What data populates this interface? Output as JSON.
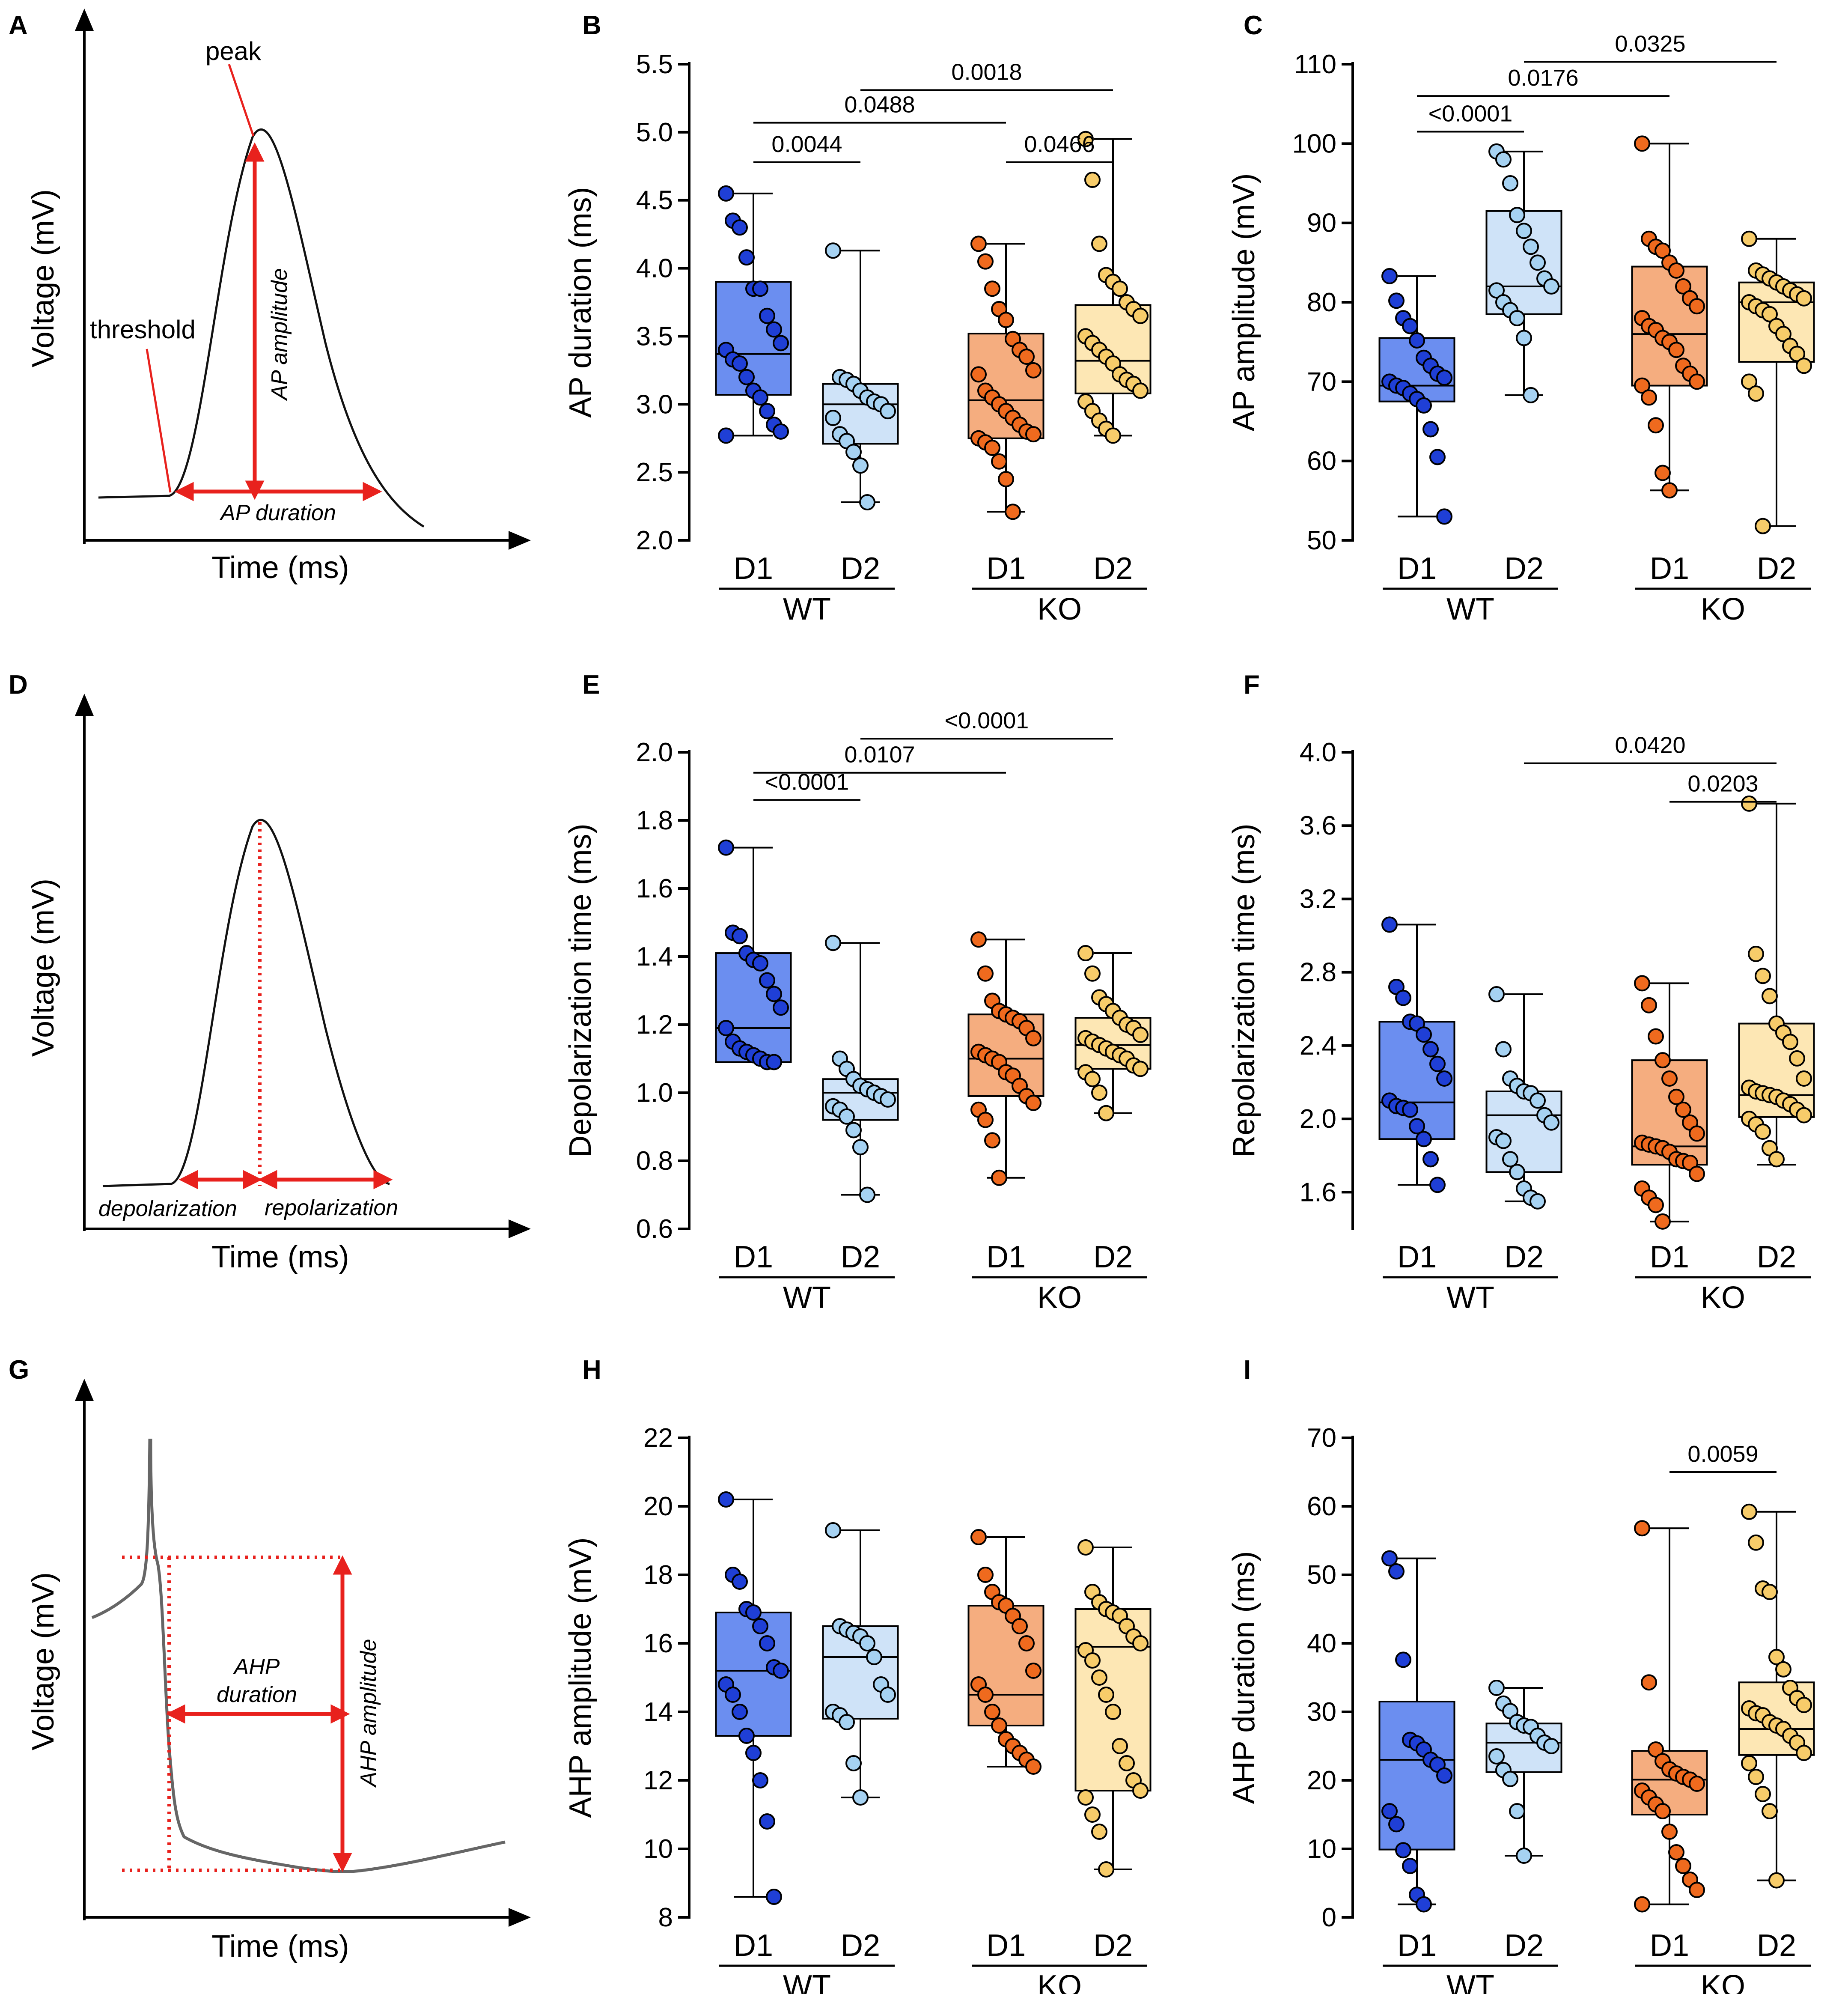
{
  "figure": {
    "panel_letters": [
      "A",
      "B",
      "C",
      "D",
      "E",
      "F",
      "G",
      "H",
      "I"
    ],
    "colors": {
      "WT_D1": "#6b8ef0",
      "WT_D2": "#cfe3f8",
      "KO_D1": "#f5ad7f",
      "KO_D2": "#fde7b4",
      "WT_D1_dot": "#1f3fd6",
      "WT_D2_dot": "#a6d2f2",
      "KO_D1_dot": "#ef6a1e",
      "KO_D2_dot": "#f7cc6a",
      "arrow": "#e8211d"
    },
    "schematics": [
      {
        "panel": "A",
        "ylabel": "Voltage (mV)",
        "xlabel": "Time (ms)",
        "labels": {
          "peak": "peak",
          "threshold": "threshold",
          "amplitude": "AP amplitude",
          "duration": "AP duration"
        }
      },
      {
        "panel": "D",
        "ylabel": "Voltage (mV)",
        "xlabel": "Time (ms)",
        "labels": {
          "depol": "depolarization",
          "repol": "repolarization"
        }
      },
      {
        "panel": "G",
        "ylabel": "Voltage (mV)",
        "xlabel": "Time (ms)",
        "labels": {
          "duration_1": "AHP",
          "duration_2": "duration",
          "amplitude": "AHP amplitude"
        }
      }
    ]
  },
  "chart_data": [
    {
      "panel": "B",
      "type": "box",
      "ylabel": "AP duration (ms)",
      "ylim": [
        2.0,
        5.5
      ],
      "ticks": [
        2.0,
        2.5,
        3.0,
        3.5,
        4.0,
        4.5,
        5.0,
        5.5
      ],
      "tick_labels": [
        "2.0",
        "2.5",
        "3.0",
        "3.5",
        "4.0",
        "4.5",
        "5.0",
        "5.5"
      ],
      "group_labels": [
        "WT",
        "KO"
      ],
      "category_labels": [
        "D1",
        "D2",
        "D1",
        "D2"
      ],
      "boxes": [
        {
          "name": "WT D1",
          "min": 2.77,
          "q1": 3.07,
          "median": 3.37,
          "q3": 3.9,
          "max": 4.55,
          "points": [
            4.55,
            4.35,
            4.3,
            4.08,
            3.85,
            3.85,
            3.65,
            3.55,
            3.45,
            3.4,
            3.33,
            3.3,
            3.2,
            3.1,
            3.05,
            2.95,
            2.85,
            2.8,
            2.77
          ]
        },
        {
          "name": "WT D2",
          "min": 2.28,
          "q1": 2.71,
          "median": 3.0,
          "q3": 3.15,
          "max": 4.13,
          "points": [
            4.13,
            3.2,
            3.18,
            3.15,
            3.1,
            3.05,
            3.02,
            3.0,
            2.95,
            2.9,
            2.78,
            2.73,
            2.65,
            2.55,
            2.28
          ]
        },
        {
          "name": "KO D1",
          "min": 2.21,
          "q1": 2.75,
          "median": 3.03,
          "q3": 3.52,
          "max": 4.18,
          "points": [
            4.18,
            4.05,
            3.85,
            3.7,
            3.62,
            3.48,
            3.4,
            3.35,
            3.25,
            3.22,
            3.1,
            3.05,
            3.0,
            2.95,
            2.9,
            2.85,
            2.8,
            2.78,
            2.75,
            2.72,
            2.68,
            2.58,
            2.45,
            2.21
          ]
        },
        {
          "name": "KO D2",
          "min": 2.77,
          "q1": 3.08,
          "median": 3.32,
          "q3": 3.73,
          "max": 4.95,
          "points": [
            4.95,
            4.65,
            4.18,
            3.95,
            3.9,
            3.85,
            3.75,
            3.7,
            3.65,
            3.5,
            3.45,
            3.4,
            3.35,
            3.3,
            3.22,
            3.18,
            3.15,
            3.1,
            3.02,
            2.95,
            2.88,
            2.82,
            2.77
          ]
        }
      ],
      "comparisons": [
        {
          "from": 0,
          "to": 1,
          "y": 4.78,
          "label": "0.0044"
        },
        {
          "from": 0,
          "to": 2,
          "y": 5.07,
          "label": "0.0488"
        },
        {
          "from": 1,
          "to": 3,
          "y": 5.31,
          "label": "0.0018"
        },
        {
          "from": 2,
          "to": 3,
          "y": 4.78,
          "label": "0.0466"
        }
      ]
    },
    {
      "panel": "C",
      "type": "box",
      "ylabel": "AP amplitude (mV)",
      "ylim": [
        50,
        110
      ],
      "ticks": [
        50,
        60,
        70,
        80,
        90,
        100,
        110
      ],
      "tick_labels": [
        "50",
        "60",
        "70",
        "80",
        "90",
        "100",
        "110"
      ],
      "group_labels": [
        "WT",
        "KO"
      ],
      "category_labels": [
        "D1",
        "D2",
        "D1",
        "D2"
      ],
      "boxes": [
        {
          "name": "WT D1",
          "min": 53.0,
          "q1": 67.5,
          "median": 69.5,
          "q3": 75.5,
          "max": 83.3,
          "points": [
            83.3,
            80.2,
            78.0,
            77.0,
            75.2,
            73.0,
            72.0,
            71.0,
            70.5,
            70.0,
            69.5,
            69.2,
            68.5,
            67.8,
            67.0,
            64.0,
            60.5,
            53.0
          ]
        },
        {
          "name": "WT D2",
          "min": 68.3,
          "q1": 78.5,
          "median": 82.0,
          "q3": 91.5,
          "max": 99.0,
          "points": [
            99.0,
            98.0,
            95.0,
            91.0,
            89.0,
            87.0,
            85.0,
            83.0,
            82.0,
            81.5,
            80.0,
            79.0,
            78.0,
            75.5,
            68.3
          ]
        },
        {
          "name": "KO D1",
          "min": 56.3,
          "q1": 69.5,
          "median": 76.0,
          "q3": 84.5,
          "max": 100.0,
          "points": [
            100.0,
            88.0,
            87.0,
            86.5,
            85.0,
            84.0,
            82.0,
            80.5,
            79.5,
            78.0,
            77.0,
            76.5,
            75.5,
            75.0,
            74.0,
            72.0,
            71.0,
            70.0,
            69.5,
            68.0,
            64.5,
            58.5,
            56.3
          ]
        },
        {
          "name": "KO D2",
          "min": 51.8,
          "q1": 72.5,
          "median": 80.0,
          "q3": 82.5,
          "max": 88.0,
          "points": [
            88.0,
            84.0,
            83.5,
            83.0,
            82.5,
            82.0,
            81.5,
            81.0,
            80.5,
            80.0,
            79.5,
            79.0,
            78.5,
            77.0,
            76.0,
            74.5,
            73.5,
            72.0,
            70.0,
            68.5,
            51.8
          ]
        }
      ],
      "comparisons": [
        {
          "from": 0,
          "to": 1,
          "y": 101.5,
          "label": "<0.0001"
        },
        {
          "from": 0,
          "to": 2,
          "y": 106,
          "label": "0.0176"
        },
        {
          "from": 1,
          "to": 3,
          "y": 110.3,
          "label": "0.0325"
        }
      ]
    },
    {
      "panel": "E",
      "type": "box",
      "ylabel": "Depolarization time (ms)",
      "ylim": [
        0.6,
        2.0
      ],
      "ticks": [
        0.6,
        0.8,
        1.0,
        1.2,
        1.4,
        1.6,
        1.8,
        2.0
      ],
      "tick_labels": [
        "0.6",
        "0.8",
        "1.0",
        "1.2",
        "1.4",
        "1.6",
        "1.8",
        "2.0"
      ],
      "group_labels": [
        "WT",
        "KO"
      ],
      "category_labels": [
        "D1",
        "D2",
        "D1",
        "D2"
      ],
      "boxes": [
        {
          "name": "WT D1",
          "min": 1.09,
          "q1": 1.09,
          "median": 1.19,
          "q3": 1.41,
          "max": 1.72,
          "points": [
            1.72,
            1.47,
            1.46,
            1.41,
            1.39,
            1.38,
            1.33,
            1.29,
            1.25,
            1.19,
            1.15,
            1.13,
            1.12,
            1.11,
            1.1,
            1.09,
            1.09
          ]
        },
        {
          "name": "WT D2",
          "min": 0.7,
          "q1": 0.92,
          "median": 1.0,
          "q3": 1.04,
          "max": 1.44,
          "points": [
            1.44,
            1.1,
            1.07,
            1.04,
            1.02,
            1.01,
            1.0,
            0.99,
            0.98,
            0.96,
            0.95,
            0.93,
            0.89,
            0.84,
            0.7
          ]
        },
        {
          "name": "KO D1",
          "min": 0.75,
          "q1": 0.99,
          "median": 1.1,
          "q3": 1.23,
          "max": 1.45,
          "points": [
            1.45,
            1.35,
            1.27,
            1.24,
            1.23,
            1.22,
            1.21,
            1.19,
            1.16,
            1.12,
            1.11,
            1.1,
            1.09,
            1.06,
            1.05,
            1.02,
            0.99,
            0.97,
            0.95,
            0.92,
            0.86,
            0.75
          ]
        },
        {
          "name": "KO D2",
          "min": 0.94,
          "q1": 1.07,
          "median": 1.14,
          "q3": 1.22,
          "max": 1.41,
          "points": [
            1.41,
            1.35,
            1.28,
            1.26,
            1.24,
            1.22,
            1.2,
            1.19,
            1.17,
            1.16,
            1.15,
            1.14,
            1.13,
            1.12,
            1.11,
            1.1,
            1.08,
            1.07,
            1.06,
            1.04,
            1.0,
            0.94
          ]
        }
      ],
      "comparisons": [
        {
          "from": 0,
          "to": 1,
          "y": 1.86,
          "label": "<0.0001"
        },
        {
          "from": 0,
          "to": 2,
          "y": 1.94,
          "label": "0.0107"
        },
        {
          "from": 1,
          "to": 3,
          "y": 2.04,
          "label": "<0.0001"
        }
      ]
    },
    {
      "panel": "F",
      "type": "box",
      "ylabel": "Repolarization time (ms)",
      "ylim": [
        1.4,
        4.0
      ],
      "ticks": [
        1.6,
        2.0,
        2.4,
        2.8,
        3.2,
        3.6,
        4.0
      ],
      "tick_labels": [
        "1.6",
        "2.0",
        "2.4",
        "2.8",
        "3.2",
        "3.6",
        "4.0"
      ],
      "group_labels": [
        "WT",
        "KO"
      ],
      "category_labels": [
        "D1",
        "D2",
        "D1",
        "D2"
      ],
      "boxes": [
        {
          "name": "WT D1",
          "min": 1.64,
          "q1": 1.89,
          "median": 2.09,
          "q3": 2.53,
          "max": 3.06,
          "points": [
            3.06,
            2.72,
            2.66,
            2.53,
            2.52,
            2.46,
            2.38,
            2.3,
            2.22,
            2.1,
            2.07,
            2.06,
            2.05,
            1.96,
            1.89,
            1.78,
            1.64
          ]
        },
        {
          "name": "WT D2",
          "min": 1.55,
          "q1": 1.71,
          "median": 2.02,
          "q3": 2.15,
          "max": 2.68,
          "points": [
            2.68,
            2.38,
            2.22,
            2.18,
            2.15,
            2.14,
            2.1,
            2.02,
            1.98,
            1.9,
            1.88,
            1.78,
            1.71,
            1.62,
            1.57,
            1.55
          ]
        },
        {
          "name": "KO D1",
          "min": 1.44,
          "q1": 1.75,
          "median": 1.85,
          "q3": 2.32,
          "max": 2.74,
          "points": [
            2.74,
            2.62,
            2.45,
            2.32,
            2.22,
            2.12,
            2.05,
            1.98,
            1.92,
            1.87,
            1.86,
            1.85,
            1.84,
            1.82,
            1.78,
            1.77,
            1.76,
            1.7,
            1.62,
            1.57,
            1.53,
            1.44
          ]
        },
        {
          "name": "KO D2",
          "min": 1.75,
          "q1": 2.01,
          "median": 2.13,
          "q3": 2.52,
          "max": 3.72,
          "points": [
            3.72,
            2.9,
            2.78,
            2.67,
            2.52,
            2.47,
            2.42,
            2.33,
            2.22,
            2.17,
            2.15,
            2.14,
            2.13,
            2.12,
            2.1,
            2.08,
            2.05,
            2.02,
            2.0,
            1.97,
            1.93,
            1.84,
            1.78
          ]
        }
      ],
      "comparisons": [
        {
          "from": 2,
          "to": 3,
          "y": 3.73,
          "label": "0.0203"
        },
        {
          "from": 1,
          "to": 3,
          "y": 3.94,
          "label": "0.0420"
        }
      ]
    },
    {
      "panel": "H",
      "type": "box",
      "ylabel": "AHP amplitude (mV)",
      "ylim": [
        8,
        22
      ],
      "ticks": [
        8,
        10,
        12,
        14,
        16,
        18,
        20,
        22
      ],
      "tick_labels": [
        "8",
        "10",
        "12",
        "14",
        "16",
        "18",
        "20",
        "22"
      ],
      "group_labels": [
        "WT",
        "KO"
      ],
      "category_labels": [
        "D1",
        "D2",
        "D1",
        "D2"
      ],
      "boxes": [
        {
          "name": "WT D1",
          "min": 8.6,
          "q1": 13.3,
          "median": 15.2,
          "q3": 16.9,
          "max": 20.2,
          "points": [
            20.2,
            18.0,
            17.8,
            17.0,
            16.9,
            16.5,
            16.0,
            15.3,
            15.2,
            14.8,
            14.5,
            14.0,
            13.3,
            12.8,
            12.0,
            10.8,
            8.6
          ]
        },
        {
          "name": "WT D2",
          "min": 11.5,
          "q1": 13.8,
          "median": 15.6,
          "q3": 16.5,
          "max": 19.3,
          "points": [
            19.3,
            16.5,
            16.4,
            16.3,
            16.2,
            16.0,
            15.6,
            14.8,
            14.5,
            14.0,
            13.9,
            13.7,
            12.5,
            11.5
          ]
        },
        {
          "name": "KO D1",
          "min": 12.4,
          "q1": 13.6,
          "median": 14.5,
          "q3": 17.1,
          "max": 19.1,
          "points": [
            19.1,
            18.0,
            17.5,
            17.2,
            17.1,
            16.8,
            16.5,
            16.0,
            15.2,
            14.8,
            14.5,
            14.0,
            13.6,
            13.2,
            13.0,
            12.8,
            12.6,
            12.4
          ]
        },
        {
          "name": "KO D2",
          "min": 9.4,
          "q1": 11.7,
          "median": 15.9,
          "q3": 17.0,
          "max": 18.8,
          "points": [
            18.8,
            17.5,
            17.2,
            17.0,
            16.9,
            16.8,
            16.5,
            16.2,
            16.0,
            15.8,
            15.5,
            15.0,
            14.5,
            14.0,
            13.0,
            12.5,
            12.0,
            11.7,
            11.5,
            11.0,
            10.5,
            9.4
          ]
        }
      ],
      "comparisons": []
    },
    {
      "panel": "I",
      "type": "box",
      "ylabel": "AHP duration (ms)",
      "ylim": [
        0,
        70
      ],
      "ticks": [
        0,
        10,
        20,
        30,
        40,
        50,
        60,
        70
      ],
      "tick_labels": [
        "0",
        "10",
        "20",
        "30",
        "40",
        "50",
        "60",
        "70"
      ],
      "group_labels": [
        "WT",
        "KO"
      ],
      "category_labels": [
        "D1",
        "D2",
        "D1",
        "D2"
      ],
      "boxes": [
        {
          "name": "WT D1",
          "min": 1.9,
          "q1": 9.9,
          "median": 23.0,
          "q3": 31.5,
          "max": 52.4,
          "points": [
            52.4,
            50.5,
            37.6,
            25.9,
            25.4,
            24.5,
            23.0,
            22.3,
            20.7,
            15.5,
            13.6,
            9.8,
            7.5,
            3.3,
            1.9
          ]
        },
        {
          "name": "WT D2",
          "min": 9.0,
          "q1": 21.2,
          "median": 25.5,
          "q3": 28.3,
          "max": 33.5,
          "points": [
            33.5,
            31.2,
            30.1,
            28.5,
            28.0,
            27.8,
            26.5,
            25.5,
            25.0,
            23.5,
            21.5,
            20.2,
            15.5,
            9.0
          ]
        },
        {
          "name": "KO D1",
          "min": 1.9,
          "q1": 15.0,
          "median": 20.1,
          "q3": 24.3,
          "max": 56.8,
          "points": [
            56.8,
            34.3,
            24.5,
            22.8,
            21.6,
            21.0,
            20.5,
            20.1,
            19.5,
            18.5,
            17.5,
            16.5,
            15.5,
            12.5,
            9.5,
            7.5,
            5.5,
            4.0,
            1.9
          ]
        },
        {
          "name": "KO D2",
          "min": 5.4,
          "q1": 23.7,
          "median": 27.5,
          "q3": 34.3,
          "max": 59.2,
          "points": [
            59.2,
            54.7,
            48.0,
            47.5,
            38.0,
            36.2,
            33.5,
            32.0,
            31.0,
            30.5,
            29.8,
            29.5,
            28.5,
            28.0,
            27.5,
            26.5,
            25.5,
            24.0,
            22.5,
            20.5,
            18.0,
            15.5,
            5.4
          ]
        }
      ],
      "comparisons": [
        {
          "from": 2,
          "to": 3,
          "y": 65,
          "label": "0.0059"
        }
      ]
    }
  ]
}
